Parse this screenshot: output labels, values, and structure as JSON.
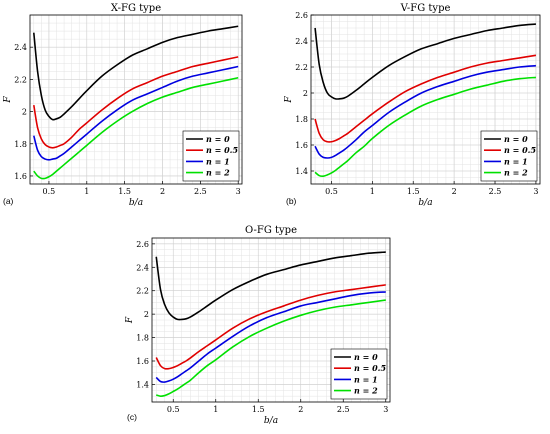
{
  "chart_data": [
    {
      "type": "line",
      "panel_tag": "(a)",
      "title": "X-FG type",
      "xlabel": "b/a",
      "ylabel": "F",
      "xlim": [
        0.25,
        3.05
      ],
      "ylim": [
        1.55,
        2.6
      ],
      "xticks": [
        0.5,
        1,
        1.5,
        2,
        2.5,
        3
      ],
      "xtick_labels": [
        "0.5",
        "1",
        "1.5",
        "2",
        "2.5",
        "3"
      ],
      "yticks": [
        1.6,
        1.8,
        2.0,
        2.2,
        2.4
      ],
      "ytick_labels": [
        "1.6",
        "1.8",
        "2",
        "2.2",
        "2.4"
      ],
      "grid": true,
      "legend_position": "lower-right",
      "series": [
        {
          "name": "n = 0",
          "color": "#000000",
          "x": [
            0.3,
            0.35,
            0.4,
            0.45,
            0.5,
            0.55,
            0.6,
            0.65,
            0.7,
            0.8,
            0.9,
            1.0,
            1.2,
            1.4,
            1.6,
            1.8,
            2.0,
            2.2,
            2.4,
            2.6,
            2.8,
            3.0
          ],
          "y": [
            2.49,
            2.25,
            2.1,
            2.01,
            1.97,
            1.95,
            1.955,
            1.965,
            1.985,
            2.03,
            2.08,
            2.13,
            2.22,
            2.29,
            2.35,
            2.39,
            2.43,
            2.46,
            2.48,
            2.5,
            2.515,
            2.53
          ]
        },
        {
          "name": "n = 0.5",
          "color": "#e00000",
          "x": [
            0.3,
            0.35,
            0.4,
            0.45,
            0.5,
            0.55,
            0.6,
            0.65,
            0.7,
            0.8,
            0.9,
            1.0,
            1.2,
            1.4,
            1.6,
            1.8,
            2.0,
            2.2,
            2.4,
            2.6,
            2.8,
            3.0
          ],
          "y": [
            2.04,
            1.9,
            1.83,
            1.795,
            1.78,
            1.775,
            1.78,
            1.79,
            1.8,
            1.84,
            1.89,
            1.93,
            2.01,
            2.08,
            2.14,
            2.18,
            2.22,
            2.25,
            2.28,
            2.3,
            2.32,
            2.34
          ]
        },
        {
          "name": "n = 1",
          "color": "#0000e0",
          "x": [
            0.3,
            0.35,
            0.4,
            0.45,
            0.5,
            0.55,
            0.6,
            0.65,
            0.7,
            0.8,
            0.9,
            1.0,
            1.2,
            1.4,
            1.6,
            1.8,
            2.0,
            2.2,
            2.4,
            2.6,
            2.8,
            3.0
          ],
          "y": [
            1.85,
            1.76,
            1.72,
            1.705,
            1.7,
            1.705,
            1.71,
            1.725,
            1.74,
            1.78,
            1.82,
            1.86,
            1.94,
            2.01,
            2.07,
            2.11,
            2.15,
            2.19,
            2.22,
            2.24,
            2.26,
            2.28
          ]
        },
        {
          "name": "n = 2",
          "color": "#00e000",
          "x": [
            0.3,
            0.35,
            0.4,
            0.45,
            0.5,
            0.55,
            0.6,
            0.65,
            0.7,
            0.8,
            0.9,
            1.0,
            1.2,
            1.4,
            1.6,
            1.8,
            2.0,
            2.2,
            2.4,
            2.6,
            2.8,
            3.0
          ],
          "y": [
            1.63,
            1.6,
            1.585,
            1.585,
            1.595,
            1.61,
            1.63,
            1.65,
            1.67,
            1.71,
            1.75,
            1.79,
            1.87,
            1.94,
            2.0,
            2.05,
            2.09,
            2.12,
            2.15,
            2.17,
            2.19,
            2.21
          ]
        }
      ]
    },
    {
      "type": "line",
      "panel_tag": "(b)",
      "title": "V-FG type",
      "xlabel": "b/a",
      "ylabel": "F",
      "xlim": [
        0.25,
        3.05
      ],
      "ylim": [
        1.3,
        2.6
      ],
      "xticks": [
        0.5,
        1,
        1.5,
        2,
        2.5,
        3
      ],
      "xtick_labels": [
        "0.5",
        "1",
        "1.5",
        "2",
        "2.5",
        "3"
      ],
      "yticks": [
        1.4,
        1.6,
        1.8,
        2.0,
        2.2,
        2.4,
        2.6
      ],
      "ytick_labels": [
        "1.4",
        "1.6",
        "1.8",
        "2",
        "2.2",
        "2.4",
        "2.6"
      ],
      "grid": true,
      "legend_position": "lower-right",
      "series": [
        {
          "name": "n = 0",
          "color": "#000000",
          "x": [
            0.3,
            0.35,
            0.4,
            0.45,
            0.5,
            0.55,
            0.6,
            0.65,
            0.7,
            0.8,
            0.9,
            1.0,
            1.2,
            1.4,
            1.6,
            1.8,
            2.0,
            2.2,
            2.4,
            2.6,
            2.8,
            3.0
          ],
          "y": [
            2.5,
            2.22,
            2.08,
            2.0,
            1.97,
            1.955,
            1.955,
            1.96,
            1.975,
            2.02,
            2.07,
            2.12,
            2.21,
            2.28,
            2.34,
            2.38,
            2.42,
            2.45,
            2.48,
            2.5,
            2.52,
            2.53
          ]
        },
        {
          "name": "n = 0.5",
          "color": "#e00000",
          "x": [
            0.3,
            0.35,
            0.4,
            0.45,
            0.5,
            0.55,
            0.6,
            0.65,
            0.7,
            0.8,
            0.9,
            1.0,
            1.2,
            1.4,
            1.6,
            1.8,
            2.0,
            2.2,
            2.4,
            2.6,
            2.8,
            3.0
          ],
          "y": [
            1.8,
            1.69,
            1.64,
            1.625,
            1.625,
            1.635,
            1.65,
            1.67,
            1.69,
            1.74,
            1.79,
            1.84,
            1.93,
            2.01,
            2.07,
            2.12,
            2.16,
            2.2,
            2.23,
            2.25,
            2.27,
            2.29
          ]
        },
        {
          "name": "n = 1",
          "color": "#0000e0",
          "x": [
            0.3,
            0.35,
            0.4,
            0.45,
            0.5,
            0.55,
            0.6,
            0.65,
            0.7,
            0.8,
            0.9,
            1.0,
            1.2,
            1.4,
            1.6,
            1.8,
            2.0,
            2.2,
            2.4,
            2.6,
            2.8,
            3.0
          ],
          "y": [
            1.59,
            1.53,
            1.505,
            1.5,
            1.505,
            1.52,
            1.54,
            1.56,
            1.585,
            1.64,
            1.7,
            1.75,
            1.85,
            1.93,
            2.0,
            2.05,
            2.09,
            2.13,
            2.16,
            2.18,
            2.2,
            2.21
          ]
        },
        {
          "name": "n = 2",
          "color": "#00e000",
          "x": [
            0.3,
            0.35,
            0.4,
            0.45,
            0.5,
            0.55,
            0.6,
            0.65,
            0.7,
            0.8,
            0.9,
            1.0,
            1.2,
            1.4,
            1.6,
            1.8,
            2.0,
            2.2,
            2.4,
            2.6,
            2.8,
            3.0
          ],
          "y": [
            1.39,
            1.365,
            1.36,
            1.37,
            1.385,
            1.405,
            1.43,
            1.455,
            1.48,
            1.54,
            1.59,
            1.65,
            1.75,
            1.83,
            1.9,
            1.95,
            1.99,
            2.03,
            2.06,
            2.09,
            2.11,
            2.12
          ]
        }
      ]
    },
    {
      "type": "line",
      "panel_tag": "(c)",
      "title": "O-FG type",
      "xlabel": "b/a",
      "ylabel": "F",
      "xlim": [
        0.25,
        3.05
      ],
      "ylim": [
        1.25,
        2.65
      ],
      "xticks": [
        0.5,
        1,
        1.5,
        2,
        2.5,
        3
      ],
      "xtick_labels": [
        "0.5",
        "1",
        "1.5",
        "2",
        "2.5",
        "3"
      ],
      "yticks": [
        1.4,
        1.6,
        1.8,
        2.0,
        2.2,
        2.4,
        2.6
      ],
      "ytick_labels": [
        "1.4",
        "1.6",
        "1.8",
        "2",
        "2.2",
        "2.4",
        "2.6"
      ],
      "grid": true,
      "legend_position": "lower-right",
      "series": [
        {
          "name": "n = 0",
          "color": "#000000",
          "x": [
            0.3,
            0.35,
            0.4,
            0.45,
            0.5,
            0.55,
            0.6,
            0.65,
            0.7,
            0.8,
            0.9,
            1.0,
            1.2,
            1.4,
            1.6,
            1.8,
            2.0,
            2.2,
            2.4,
            2.6,
            2.8,
            3.0
          ],
          "y": [
            2.49,
            2.21,
            2.08,
            2.01,
            1.975,
            1.955,
            1.955,
            1.96,
            1.975,
            2.02,
            2.07,
            2.12,
            2.21,
            2.28,
            2.34,
            2.38,
            2.42,
            2.45,
            2.48,
            2.5,
            2.52,
            2.53
          ]
        },
        {
          "name": "n = 0.5",
          "color": "#e00000",
          "x": [
            0.3,
            0.35,
            0.4,
            0.45,
            0.5,
            0.55,
            0.6,
            0.65,
            0.7,
            0.8,
            0.9,
            1.0,
            1.2,
            1.4,
            1.6,
            1.8,
            2.0,
            2.2,
            2.4,
            2.6,
            2.8,
            3.0
          ],
          "y": [
            1.63,
            1.56,
            1.535,
            1.535,
            1.545,
            1.56,
            1.58,
            1.6,
            1.625,
            1.68,
            1.73,
            1.78,
            1.88,
            1.96,
            2.02,
            2.07,
            2.12,
            2.16,
            2.19,
            2.21,
            2.23,
            2.25
          ]
        },
        {
          "name": "n = 1",
          "color": "#0000e0",
          "x": [
            0.3,
            0.35,
            0.4,
            0.45,
            0.5,
            0.55,
            0.6,
            0.65,
            0.7,
            0.8,
            0.9,
            1.0,
            1.2,
            1.4,
            1.6,
            1.8,
            2.0,
            2.2,
            2.4,
            2.6,
            2.8,
            3.0
          ],
          "y": [
            1.46,
            1.425,
            1.42,
            1.43,
            1.445,
            1.465,
            1.49,
            1.515,
            1.54,
            1.6,
            1.66,
            1.71,
            1.81,
            1.9,
            1.97,
            2.02,
            2.07,
            2.1,
            2.13,
            2.16,
            2.18,
            2.19
          ]
        },
        {
          "name": "n = 2",
          "color": "#00e000",
          "x": [
            0.3,
            0.35,
            0.4,
            0.45,
            0.5,
            0.55,
            0.6,
            0.65,
            0.7,
            0.8,
            0.9,
            1.0,
            1.2,
            1.4,
            1.6,
            1.8,
            2.0,
            2.2,
            2.4,
            2.6,
            2.8,
            3.0
          ],
          "y": [
            1.31,
            1.3,
            1.305,
            1.32,
            1.34,
            1.36,
            1.385,
            1.41,
            1.435,
            1.5,
            1.56,
            1.61,
            1.72,
            1.81,
            1.88,
            1.94,
            1.99,
            2.03,
            2.06,
            2.08,
            2.1,
            2.12
          ]
        }
      ]
    }
  ]
}
